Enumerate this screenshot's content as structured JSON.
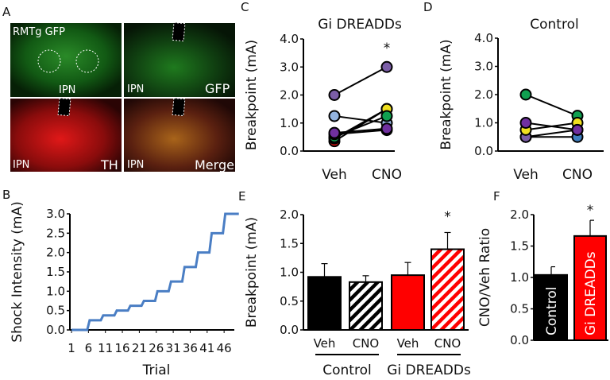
{
  "panel_labels": {
    "A": "A",
    "B": "B",
    "C": "C",
    "D": "D",
    "E": "E",
    "F": "F"
  },
  "panel_a": {
    "top_left_label": "RMTg GFP",
    "top_left_region": "IPN",
    "top_right_region": "IPN",
    "top_right_label": "GFP",
    "bottom_left_region": "IPN",
    "bottom_left_label": "TH",
    "bottom_right_region": "IPN",
    "bottom_right_label": "Merge"
  },
  "chart_data": [
    {
      "id": "B",
      "type": "line",
      "title": "",
      "xlabel": "Trial",
      "ylabel": "Shock Intensity (mA)",
      "ylim": [
        0,
        3.0
      ],
      "yticks": [
        "0.0",
        "0.5",
        "1.0",
        "1.5",
        "2.0",
        "2.5",
        "3.0"
      ],
      "xticks": [
        "1",
        "6",
        "11",
        "16",
        "21",
        "26",
        "31",
        "36",
        "41",
        "46"
      ],
      "xlim": [
        1,
        50
      ],
      "series": [
        {
          "name": "shock",
          "color": "#4a7ec4",
          "x": [
            1,
            6,
            10,
            14,
            18,
            22,
            26,
            30,
            34,
            38,
            42,
            46,
            50
          ],
          "y": [
            0,
            0.25,
            0.375,
            0.5,
            0.625,
            0.75,
            1.0,
            1.25,
            1.625,
            2.0,
            2.5,
            3.0,
            3.0
          ]
        }
      ]
    },
    {
      "id": "C",
      "type": "scatter",
      "title": "Gi DREADDs",
      "ylabel": "Breakpoint (mA)",
      "categories": [
        "Veh",
        "CNO"
      ],
      "ylim": [
        0,
        4.0
      ],
      "yticks": [
        "0.0",
        "1.0",
        "2.0",
        "3.0",
        "4.0"
      ],
      "annotation": "*",
      "series": [
        {
          "color": "#7b5ea7",
          "values": [
            2.0,
            3.0
          ]
        },
        {
          "color": "#93b3df",
          "values": [
            1.25,
            1.0
          ]
        },
        {
          "color": "#e01010",
          "values": [
            0.35,
            1.5
          ]
        },
        {
          "color": "#f0e020",
          "values": [
            0.45,
            1.5
          ]
        },
        {
          "color": "#10a050",
          "values": [
            0.5,
            1.25
          ]
        },
        {
          "color": "#7030a0",
          "values": [
            0.6,
            0.75
          ]
        },
        {
          "color": "#7030a0",
          "values": [
            0.65,
            0.8
          ]
        }
      ]
    },
    {
      "id": "D",
      "type": "scatter",
      "title": "Control",
      "ylabel": "Breakpoint (mA)",
      "categories": [
        "Veh",
        "CNO"
      ],
      "ylim": [
        0,
        4.0
      ],
      "yticks": [
        "0.0",
        "1.0",
        "2.0",
        "3.0",
        "4.0"
      ],
      "series": [
        {
          "color": "#10a050",
          "values": [
            2.0,
            1.25
          ]
        },
        {
          "color": "#3f7fc0",
          "values": [
            0.5,
            0.5
          ]
        },
        {
          "color": "#7b5ea7",
          "values": [
            0.5,
            0.75
          ]
        },
        {
          "color": "#f0e020",
          "values": [
            0.75,
            1.0
          ]
        },
        {
          "color": "#7030a0",
          "values": [
            1.0,
            0.75
          ]
        }
      ]
    },
    {
      "id": "E",
      "type": "bar",
      "ylabel": "Breakpoint (mA)",
      "ylim": [
        0,
        2.0
      ],
      "yticks": [
        "0.0",
        "0.5",
        "1.0",
        "1.5",
        "2.0"
      ],
      "categories": [
        "Veh",
        "CNO",
        "Veh",
        "CNO"
      ],
      "groups": [
        "Control",
        "Gi DREADDs"
      ],
      "values": [
        0.92,
        0.83,
        0.95,
        1.4
      ],
      "errors": [
        0.23,
        0.11,
        0.22,
        0.29
      ],
      "colors": [
        "#000000",
        "#000000",
        "#ff0000",
        "#ff0000"
      ],
      "hatched": [
        false,
        true,
        false,
        true
      ],
      "annotations": [
        "",
        "",
        "",
        "*"
      ]
    },
    {
      "id": "F",
      "type": "bar",
      "ylabel": "CNO/Veh Ratio",
      "ylim": [
        0,
        2.0
      ],
      "yticks": [
        "0.0",
        "0.5",
        "1.0",
        "1.5",
        "2.0"
      ],
      "categories": [
        "Control",
        "Gi DREADDs"
      ],
      "values": [
        1.04,
        1.66
      ],
      "errors": [
        0.13,
        0.25
      ],
      "colors": [
        "#000000",
        "#ff0000"
      ],
      "annotations": [
        "",
        "*"
      ]
    }
  ]
}
